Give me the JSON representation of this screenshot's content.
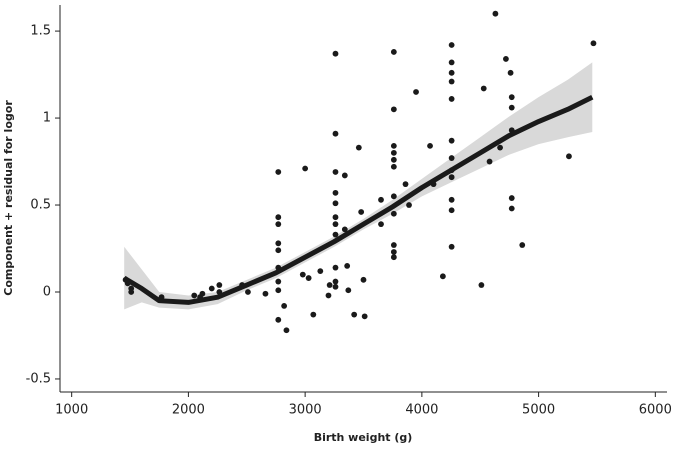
{
  "chart_data": {
    "type": "scatter",
    "x_label": "Birth weight (g)",
    "y_label": "Component + residual for logor",
    "xlim": [
      900,
      6100
    ],
    "ylim": [
      -0.575,
      1.65
    ],
    "xticks": [
      1000,
      2000,
      3000,
      4000,
      5000,
      6000
    ],
    "yticks": [
      -0.5,
      0,
      0.5,
      1,
      1.5
    ],
    "points": {
      "color": "#1a1a1a",
      "x": [
        1462,
        1480,
        1510,
        1510,
        1770,
        2050,
        2100,
        2120,
        2200,
        2265,
        2265,
        2460,
        2510,
        2660,
        2770,
        2770,
        2770,
        2770,
        2770,
        2770,
        2770,
        2770,
        2770,
        2820,
        2840,
        2980,
        3000,
        3030,
        3070,
        3130,
        3200,
        3210,
        3260,
        3260,
        3260,
        3260,
        3260,
        3260,
        3260,
        3260,
        3260,
        3260,
        3260,
        3340,
        3340,
        3360,
        3370,
        3420,
        3460,
        3480,
        3500,
        3510,
        3650,
        3650,
        3760,
        3760,
        3760,
        3760,
        3760,
        3760,
        3760,
        3760,
        3760,
        3760,
        3760,
        3860,
        3890,
        3950,
        4070,
        4100,
        4180,
        4255,
        4255,
        4255,
        4255,
        4255,
        4255,
        4255,
        4255,
        4255,
        4255,
        4255,
        4255,
        4510,
        4530,
        4580,
        4630,
        4670,
        4720,
        4760,
        4770,
        4770,
        4770,
        4770,
        4770,
        4860,
        5260,
        5470
      ],
      "y": [
        0.07,
        0.05,
        0.0,
        0.02,
        -0.03,
        -0.02,
        -0.03,
        -0.01,
        0.02,
        0.04,
        0.0,
        0.04,
        0.0,
        -0.01,
        0.69,
        0.43,
        0.39,
        0.28,
        0.24,
        0.14,
        0.06,
        0.01,
        -0.16,
        -0.08,
        -0.22,
        0.1,
        0.71,
        0.08,
        -0.13,
        0.12,
        -0.02,
        0.04,
        1.37,
        0.91,
        0.69,
        0.57,
        0.51,
        0.43,
        0.39,
        0.33,
        0.14,
        0.06,
        0.03,
        0.67,
        0.36,
        0.15,
        0.01,
        -0.13,
        0.83,
        0.46,
        0.07,
        -0.14,
        0.39,
        0.53,
        1.38,
        1.05,
        0.84,
        0.8,
        0.76,
        0.72,
        0.55,
        0.45,
        0.27,
        0.23,
        0.2,
        0.62,
        0.5,
        1.15,
        0.84,
        0.62,
        0.09,
        1.42,
        1.32,
        1.26,
        1.21,
        1.11,
        0.87,
        0.77,
        0.7,
        0.66,
        0.53,
        0.47,
        0.26,
        0.04,
        1.17,
        0.75,
        1.6,
        0.83,
        1.34,
        1.26,
        1.12,
        1.06,
        0.93,
        0.54,
        0.48,
        0.27,
        0.78,
        1.43
      ]
    },
    "fit": {
      "color": "#1a1a1a",
      "band_color": "#d9d9d9",
      "x": [
        1450,
        1600,
        1750,
        2000,
        2250,
        2500,
        2750,
        3000,
        3250,
        3500,
        3750,
        4000,
        4250,
        4500,
        4750,
        5000,
        5250,
        5460
      ],
      "y": [
        0.08,
        0.02,
        -0.05,
        -0.06,
        -0.03,
        0.04,
        0.11,
        0.2,
        0.29,
        0.39,
        0.49,
        0.6,
        0.7,
        0.8,
        0.9,
        0.98,
        1.05,
        1.12
      ],
      "lower": [
        -0.1,
        -0.06,
        -0.09,
        -0.1,
        -0.07,
        0.01,
        0.08,
        0.17,
        0.26,
        0.36,
        0.45,
        0.55,
        0.63,
        0.71,
        0.79,
        0.85,
        0.89,
        0.92
      ],
      "upper": [
        0.26,
        0.13,
        0.0,
        -0.02,
        0.0,
        0.07,
        0.14,
        0.23,
        0.32,
        0.42,
        0.53,
        0.65,
        0.77,
        0.89,
        1.01,
        1.12,
        1.22,
        1.32
      ]
    }
  }
}
